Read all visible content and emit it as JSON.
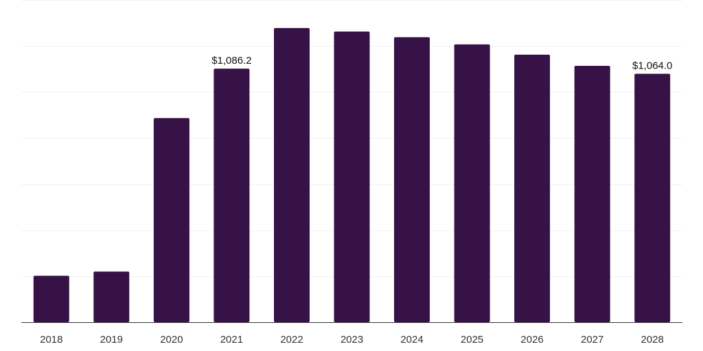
{
  "chart_data": {
    "type": "bar",
    "title": "",
    "xlabel": "",
    "ylabel": "",
    "categories": [
      "2018",
      "2019",
      "2020",
      "2021",
      "2022",
      "2023",
      "2024",
      "2025",
      "2026",
      "2027",
      "2028"
    ],
    "values": [
      199,
      217,
      874,
      1086.2,
      1260,
      1245,
      1221,
      1190,
      1146,
      1098,
      1064.0
    ],
    "data_labels": [
      {
        "index": 3,
        "text": "$1,086.2"
      },
      {
        "index": 10,
        "text": "$1,064.0"
      }
    ],
    "ylim": [
      0,
      1380
    ],
    "gridlines": [
      0,
      197.1,
      394.3,
      591.4,
      788.6,
      985.7,
      1182.9,
      1380
    ],
    "grid": true,
    "bar_color": "#371246",
    "legend": "none"
  }
}
